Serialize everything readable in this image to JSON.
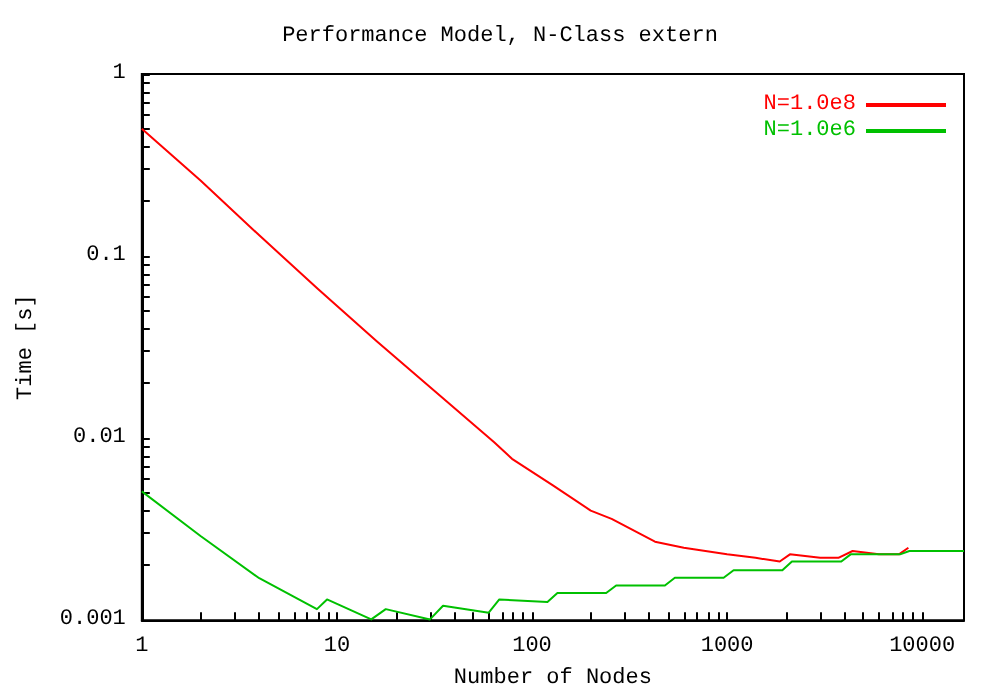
{
  "chart_data": {
    "type": "line",
    "title": "Performance Model, N-Class extern",
    "xlabel": "Number of Nodes",
    "ylabel": "Time [s]",
    "log": "xy",
    "grid": false,
    "legend": "top right",
    "marker": "none",
    "line_style": "solid",
    "xlim": [
      1,
      16384
    ],
    "ylim": [
      0.001,
      1
    ],
    "xticks": [
      1,
      {
        "value": 2,
        "label": null
      },
      {
        "value": 3,
        "label": null
      },
      {
        "value": 4,
        "label": null
      },
      {
        "value": 5,
        "label": null
      },
      {
        "value": 6,
        "label": null
      },
      {
        "value": 7,
        "label": null
      },
      {
        "value": 8,
        "label": null
      },
      {
        "value": 9,
        "label": null
      },
      10,
      {
        "value": 20,
        "label": null
      },
      {
        "value": 30,
        "label": null
      },
      {
        "value": 40,
        "label": null
      },
      {
        "value": 50,
        "label": null
      },
      {
        "value": 60,
        "label": null
      },
      {
        "value": 70,
        "label": null
      },
      {
        "value": 80,
        "label": null
      },
      {
        "value": 90,
        "label": null
      },
      100,
      {
        "value": 200,
        "label": null
      },
      {
        "value": 300,
        "label": null
      },
      {
        "value": 400,
        "label": null
      },
      {
        "value": 500,
        "label": null
      },
      {
        "value": 600,
        "label": null
      },
      {
        "value": 700,
        "label": null
      },
      {
        "value": 800,
        "label": null
      },
      {
        "value": 900,
        "label": null
      },
      1000,
      {
        "value": 2000,
        "label": null
      },
      {
        "value": 3000,
        "label": null
      },
      {
        "value": 4000,
        "label": null
      },
      {
        "value": 5000,
        "label": null
      },
      {
        "value": 6000,
        "label": null
      },
      {
        "value": 7000,
        "label": null
      },
      {
        "value": 8000,
        "label": null
      },
      {
        "value": 9000,
        "label": null
      },
      10000
    ],
    "yticks": [
      0.001,
      {
        "value": 0.002,
        "label": null
      },
      {
        "value": 0.003,
        "label": null
      },
      {
        "value": 0.004,
        "label": null
      },
      {
        "value": 0.005,
        "label": null
      },
      {
        "value": 0.006,
        "label": null
      },
      {
        "value": 0.007,
        "label": null
      },
      {
        "value": 0.008,
        "label": null
      },
      {
        "value": 0.009,
        "label": null
      },
      0.01,
      {
        "value": 0.02,
        "label": null
      },
      {
        "value": 0.03,
        "label": null
      },
      {
        "value": 0.04,
        "label": null
      },
      {
        "value": 0.05,
        "label": null
      },
      {
        "value": 0.06,
        "label": null
      },
      {
        "value": 0.07,
        "label": null
      },
      {
        "value": 0.08,
        "label": null
      },
      {
        "value": 0.09,
        "label": null
      },
      0.1,
      {
        "value": 0.2,
        "label": null
      },
      {
        "value": 0.3,
        "label": null
      },
      {
        "value": 0.4,
        "label": null
      },
      {
        "value": 0.5,
        "label": null
      },
      {
        "value": 0.6,
        "label": null
      },
      {
        "value": 0.7,
        "label": null
      },
      {
        "value": 0.8,
        "label": null
      },
      {
        "value": 0.9,
        "label": null
      },
      1
    ],
    "series": [
      {
        "name": "N=1.0e8",
        "color": "#ff0000",
        "x": [
          1,
          2,
          4,
          8,
          16,
          32,
          64,
          79,
          128,
          200,
          256,
          427,
          600,
          1000,
          1400,
          1862,
          2100,
          3000,
          3720,
          4400,
          6000,
          7600,
          8500
        ],
        "values": [
          0.5,
          0.26,
          0.13,
          0.066,
          0.034,
          0.018,
          0.0095,
          0.0077,
          0.0055,
          0.004,
          0.0036,
          0.0027,
          0.0025,
          0.0023,
          0.0022,
          0.0021,
          0.0023,
          0.0022,
          0.0022,
          0.0024,
          0.0023,
          0.0023,
          0.0025
        ]
      },
      {
        "name": "N=1.0e6",
        "color": "#00c000",
        "x": [
          1,
          2,
          4,
          7.9,
          8.9,
          15,
          17.8,
          30,
          35,
          60,
          68,
          120,
          135,
          240,
          270,
          480,
          540,
          960,
          1080,
          1920,
          2150,
          3850,
          4300,
          7700,
          8600,
          16384
        ],
        "values": [
          0.0051,
          0.0029,
          0.0017,
          0.00115,
          0.0013,
          0.00101,
          0.00115,
          0.00101,
          0.0012,
          0.0011,
          0.0013,
          0.00126,
          0.00141,
          0.00141,
          0.00155,
          0.00155,
          0.00171,
          0.00171,
          0.00188,
          0.00188,
          0.0021,
          0.0021,
          0.0023,
          0.0023,
          0.0024,
          0.0024
        ]
      }
    ]
  }
}
